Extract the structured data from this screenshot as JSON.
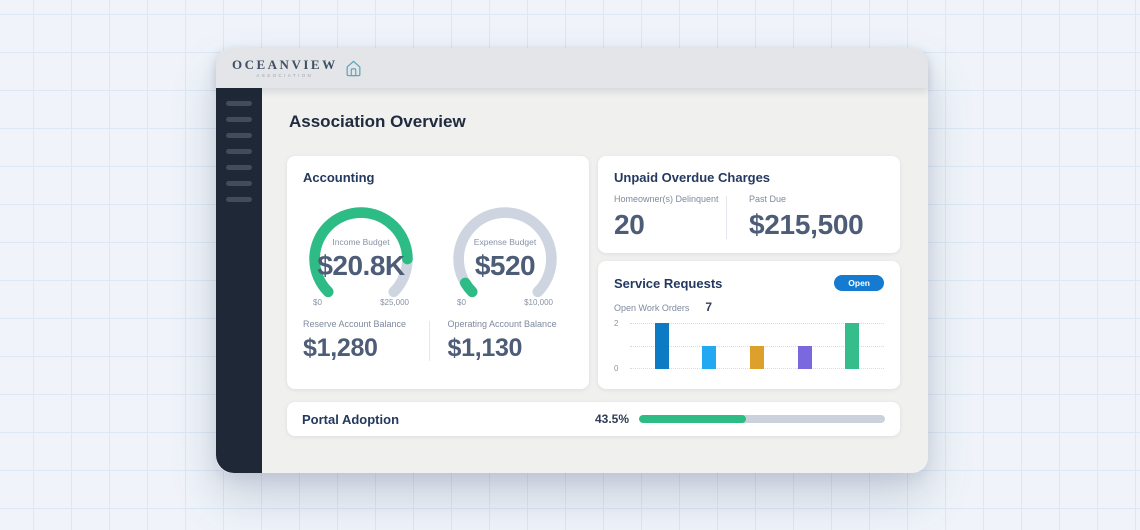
{
  "logo": {
    "name": "OCEANVIEW",
    "tagline": "ASSOCIATION",
    "icon": "house-icon",
    "icon_color": "#5fa7b8"
  },
  "page_title": "Association Overview",
  "sidebar": {
    "skeleton_items": 7
  },
  "accounting": {
    "title": "Accounting",
    "gauges": [
      {
        "label": "Income Budget",
        "value": "$20.8K",
        "min_label": "$0",
        "max_label": "$25,000",
        "fraction": 0.832,
        "color": "#2ebc86",
        "track_color": "#ced5e0"
      },
      {
        "label": "Expense Budget",
        "value": "$520",
        "min_label": "$0",
        "max_label": "$10,000",
        "fraction": 0.052,
        "color": "#2ebc86",
        "track_color": "#ced5e0"
      }
    ],
    "metrics": [
      {
        "label": "Reserve Account Balance",
        "value": "$1,280"
      },
      {
        "label": "Operating Account Balance",
        "value": "$1,130"
      }
    ]
  },
  "unpaid_overdue": {
    "title": "Unpaid Overdue Charges",
    "metrics": [
      {
        "label": "Homeowner(s) Delinquent",
        "value": "20"
      },
      {
        "label": "Past Due",
        "value": "$215,500"
      }
    ]
  },
  "service_requests": {
    "title": "Service Requests",
    "badge": {
      "label": "Open",
      "color": "#147bd1"
    },
    "summary": {
      "label": "Open Work Orders",
      "value": "7"
    },
    "chart_data": {
      "type": "bar",
      "categories": [
        "",
        "",
        "",
        "",
        ""
      ],
      "values": [
        2,
        1,
        1,
        1,
        2
      ],
      "colors": [
        "#0d7ac4",
        "#22a9f2",
        "#dda02a",
        "#7a68de",
        "#35bd8b"
      ],
      "title": "",
      "xlabel": "",
      "ylabel": "",
      "ylim": [
        0,
        2
      ],
      "ytick_labels": [
        "0",
        "2"
      ],
      "grid": "dotted horizontal lines at 0, 1, 2",
      "legend": false
    }
  },
  "portal_adoption": {
    "title": "Portal Adoption",
    "percent_label": "43.5%",
    "fraction": 0.435,
    "color": "#2ebc86",
    "track_color": "#ccd2dc"
  }
}
